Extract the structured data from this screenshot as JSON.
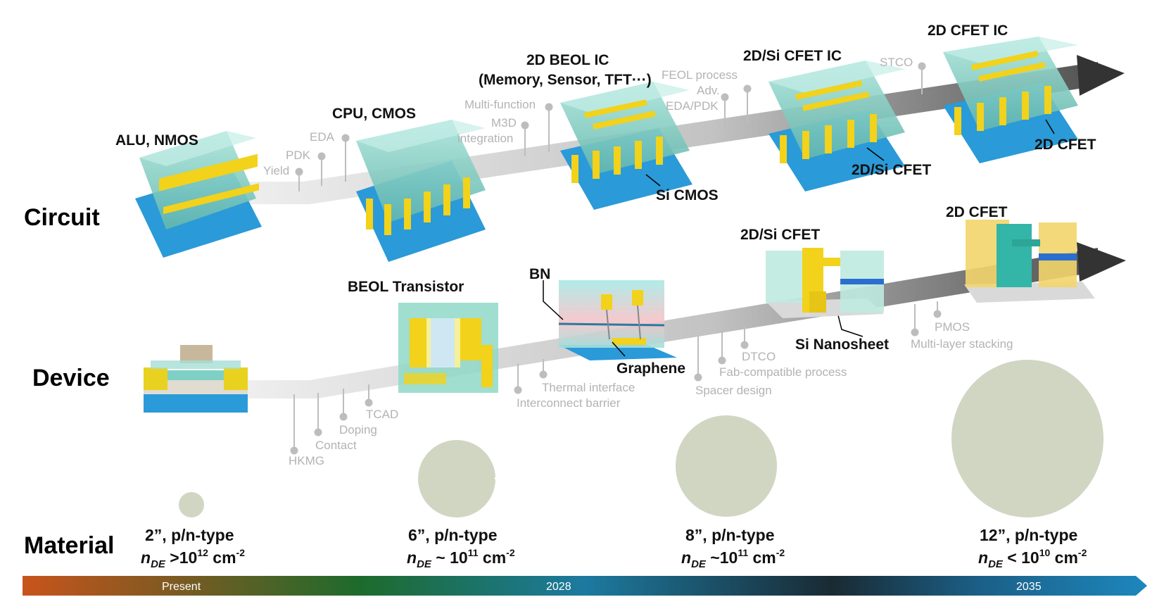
{
  "rows": {
    "circuit": "Circuit",
    "device": "Device",
    "material": "Material"
  },
  "circuit_titles": {
    "alu": "ALU, NMOS",
    "cpu": "CPU, CMOS",
    "beol_ic_1": "2D BEOL IC",
    "beol_ic_2": "(Memory, Sensor, TFT···)",
    "cfet_si_ic": "2D/Si CFET IC",
    "cfet_ic": "2D CFET IC",
    "si_cmos": "Si CMOS",
    "si_cfet": "2D/Si CFET",
    "cfet": "2D CFET"
  },
  "circuit_milestones": {
    "yield": "Yield",
    "pdk": "PDK",
    "eda": "EDA",
    "multi_function": "Multi-function",
    "m3d": "M3D",
    "integration": "integration",
    "feol": "FEOL process",
    "adv": "Adv.",
    "eda_pdk": "EDA/PDK",
    "stco": "STCO"
  },
  "device_titles": {
    "beol_transistor": "BEOL Transistor",
    "bn": "BN",
    "graphene": "Graphene",
    "si_cfet": "2D/Si CFET",
    "nanosheet": "Si Nanosheet",
    "cfet": "2D CFET"
  },
  "device_milestones": {
    "hkmg": "HKMG",
    "contact": "Contact",
    "doping": "Doping",
    "tcad": "TCAD",
    "interconnect": "Interconnect barrier",
    "thermal": "Thermal interface",
    "spacer": "Spacer design",
    "fab": "Fab-compatible process",
    "dtco": "DTCO",
    "multilayer": "Multi-layer stacking",
    "pmos": "PMOS"
  },
  "materials": [
    {
      "wafer": "2”, p/n-type",
      "n": "n",
      "sub": "DE",
      "rel": " >10",
      "exp": "12",
      "unit": " cm",
      "uexp": "-2"
    },
    {
      "wafer": "6”, p/n-type",
      "n": "n",
      "sub": "DE",
      "rel": " ~ 10",
      "exp": "11",
      "unit": " cm",
      "uexp": "-2"
    },
    {
      "wafer": "8”, p/n-type",
      "n": "n",
      "sub": "DE",
      "rel": " ~10",
      "exp": "11",
      "unit": " cm",
      "uexp": "-2"
    },
    {
      "wafer": "12”, p/n-type",
      "n": "n",
      "sub": "DE",
      "rel": " < 10",
      "exp": "10",
      "unit": " cm",
      "uexp": "-2"
    }
  ],
  "timeline": {
    "present": "Present",
    "y2028": "2028",
    "y2035": "2035"
  },
  "colors": {
    "arrow_start": "#e8e8e8",
    "arrow_end": "#3a3a3a",
    "chip_glass": "#8fd3c7",
    "chip_metal": "#f2d21a",
    "chip_substrate": "#2a9ad8",
    "wafer": "#d0d6c2",
    "timeline_start": "#c8541c",
    "timeline_mid": "#1d6b2c",
    "timeline_blue": "#1a6f9a"
  }
}
